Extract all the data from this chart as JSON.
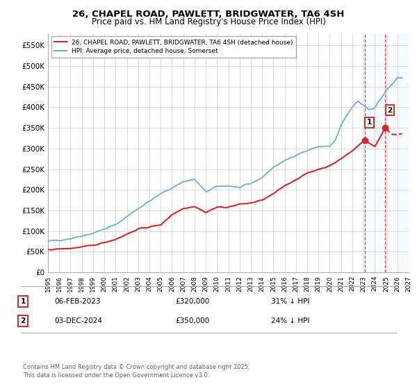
{
  "title_line1": "26, CHAPEL ROAD, PAWLETT, BRIDGWATER, TA6 4SH",
  "title_line2": "Price paid vs. HM Land Registry's House Price Index (HPI)",
  "xlim_start": 1995,
  "xlim_end": 2027,
  "ylim_min": 0,
  "ylim_max": 580000,
  "yticks": [
    0,
    50000,
    100000,
    150000,
    200000,
    250000,
    300000,
    350000,
    400000,
    450000,
    500000,
    550000
  ],
  "ytick_labels": [
    "£0",
    "£50K",
    "£100K",
    "£150K",
    "£200K",
    "£250K",
    "£300K",
    "£350K",
    "£400K",
    "£450K",
    "£500K",
    "£550K"
  ],
  "hpi_color": "#6baed6",
  "price_color": "#d62728",
  "sale1_x": 2023.1,
  "sale1_y": 320000,
  "sale1_label": "1",
  "sale2_x": 2024.92,
  "sale2_y": 350000,
  "sale2_label": "2",
  "shade_color": "#ddeeff",
  "dashed_line_color": "#d62728",
  "legend_label1": "26, CHAPEL ROAD, PAWLETT, BRIDGWATER, TA6 4SH (detached house)",
  "legend_label2": "HPI: Average price, detached house, Somerset",
  "annotation1_num": "1",
  "annotation1_date": "06-FEB-2023",
  "annotation1_price": "£320,000",
  "annotation1_hpi": "31% ↓ HPI",
  "annotation2_num": "2",
  "annotation2_date": "03-DEC-2024",
  "annotation2_price": "£350,000",
  "annotation2_hpi": "24% ↓ HPI",
  "footer": "Contains HM Land Registry data © Crown copyright and database right 2025.\nThis data is licensed under the Open Government Licence v3.0.",
  "bg_color": "#ffffff",
  "grid_color": "#cccccc",
  "hpi_anchors_x": [
    1995,
    1997,
    1999,
    2001,
    2003,
    2005,
    2007,
    2008,
    2009,
    2010,
    2011,
    2012,
    2013,
    2014,
    2015,
    2016,
    2017,
    2018,
    2019,
    2020,
    2020.5,
    2021,
    2021.5,
    2022,
    2022.5,
    2023,
    2023.5,
    2024,
    2024.5,
    2025,
    2026
  ],
  "hpi_anchors_y": [
    75000,
    82000,
    95000,
    115000,
    155000,
    190000,
    220000,
    225000,
    195000,
    208000,
    210000,
    205000,
    215000,
    230000,
    255000,
    270000,
    285000,
    295000,
    305000,
    305000,
    320000,
    355000,
    380000,
    400000,
    415000,
    405000,
    395000,
    400000,
    420000,
    440000,
    470000
  ],
  "price_anchors_x": [
    1995,
    1997,
    1999,
    2001,
    2003,
    2005,
    2006,
    2007,
    2008,
    2009,
    2010,
    2011,
    2012,
    2013,
    2014,
    2015,
    2016,
    2017,
    2018,
    2019,
    2020,
    2021,
    2022,
    2023.1,
    2024.0,
    2024.92,
    2025.5
  ],
  "price_anchors_y": [
    55000,
    58000,
    65000,
    80000,
    105000,
    115000,
    140000,
    155000,
    160000,
    145000,
    158000,
    158000,
    165000,
    168000,
    175000,
    190000,
    210000,
    225000,
    240000,
    250000,
    258000,
    275000,
    295000,
    320000,
    305000,
    350000,
    335000
  ]
}
